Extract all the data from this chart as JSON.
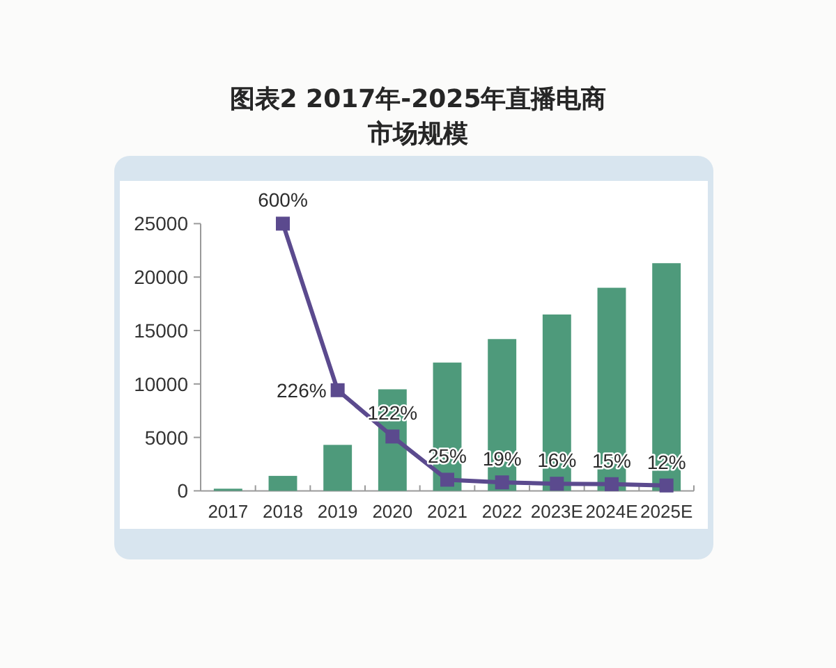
{
  "chart_data": {
    "type": "bar",
    "title": "图表2 2017年-2025年直播电商市场规模",
    "categories": [
      "2017",
      "2018",
      "2019",
      "2020",
      "2021",
      "2022",
      "2023E",
      "2024E",
      "2025E"
    ],
    "ylim": [
      0,
      25000
    ],
    "yticks": [
      0,
      5000,
      10000,
      15000,
      20000,
      25000
    ],
    "y2lim": [
      0,
      600
    ],
    "series": [
      {
        "color": "#4e9a7b",
        "values": [
          200,
          1400,
          4300,
          9500,
          12000,
          14200,
          16500,
          19000,
          21300
        ]
      },
      {
        "type": "line",
        "axis": "y2",
        "color": "#5b4a8e",
        "marker": "square",
        "line_style": "solid",
        "values": [
          null,
          600,
          226,
          122,
          25,
          19,
          16,
          15,
          12
        ],
        "value_labels": [
          null,
          "600%",
          "226%",
          "122%",
          "25%",
          "19%",
          "16%",
          "15%",
          "12%"
        ]
      }
    ]
  }
}
